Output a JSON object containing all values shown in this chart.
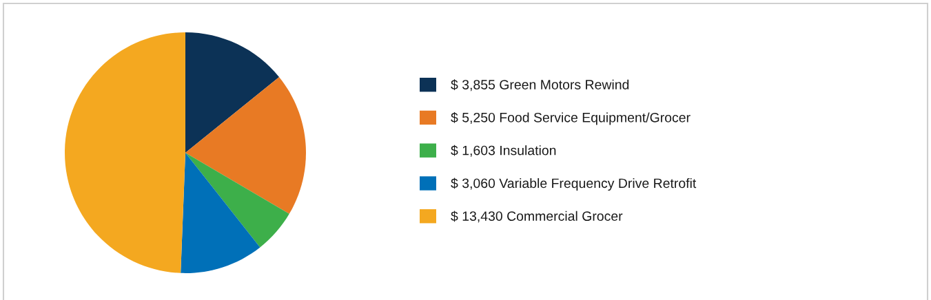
{
  "chart_data": {
    "type": "pie",
    "categories": [
      "Green Motors Rewind",
      "Food Service Equipment/Grocer",
      "Insulation",
      "Variable Frequency Drive Retrofit",
      "Commercial Grocer"
    ],
    "values": [
      3855,
      5250,
      1603,
      3060,
      13430
    ],
    "value_labels": [
      "$ 3,855",
      "$ 5,250",
      "$ 1,603",
      "$ 3,060",
      "$ 13,430"
    ],
    "colors": [
      "#0c3256",
      "#e87a24",
      "#3daf4a",
      "#0070b8",
      "#f4a820"
    ],
    "legend": "right"
  }
}
